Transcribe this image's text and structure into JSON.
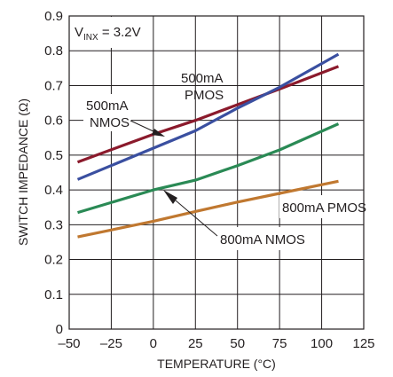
{
  "chart_data": {
    "type": "line",
    "xlabel": "TEMPERATURE (°C)",
    "ylabel": "SWITCH IMPEDANCE (Ω)",
    "xlim": [
      -50,
      125
    ],
    "ylim": [
      0,
      0.9
    ],
    "xticks": [
      -50,
      -25,
      0,
      25,
      50,
      75,
      100,
      125
    ],
    "yticks": [
      0,
      0.1,
      0.2,
      0.3,
      0.4,
      0.5,
      0.6,
      0.7,
      0.8,
      0.9
    ],
    "xtick_labels": [
      "–50",
      "–25",
      "0",
      "25",
      "50",
      "75",
      "100",
      "125"
    ],
    "ytick_labels": [
      "0",
      "0.1",
      "0.2",
      "0.3",
      "0.4",
      "0.5",
      "0.6",
      "0.7",
      "0.8",
      "0.9"
    ],
    "grid": true,
    "condition": {
      "main": "V",
      "sub": "INX",
      "rest": " = 3.2V"
    },
    "series": [
      {
        "name": "500mA PMOS",
        "color": "#8b1a2c",
        "x": [
          -45,
          0,
          25,
          50,
          75,
          110
        ],
        "y": [
          0.48,
          0.56,
          0.6,
          0.645,
          0.69,
          0.755
        ]
      },
      {
        "name": "500mA NMOS",
        "color": "#3a4fa0",
        "x": [
          -45,
          0,
          25,
          50,
          75,
          110
        ],
        "y": [
          0.43,
          0.52,
          0.57,
          0.635,
          0.695,
          0.79
        ]
      },
      {
        "name": "800mA NMOS",
        "color": "#2a8a55",
        "x": [
          -45,
          0,
          25,
          50,
          75,
          110
        ],
        "y": [
          0.335,
          0.4,
          0.428,
          0.47,
          0.515,
          0.59
        ]
      },
      {
        "name": "800mA PMOS",
        "color": "#c07830",
        "x": [
          -45,
          0,
          25,
          50,
          75,
          110
        ],
        "y": [
          0.265,
          0.31,
          0.338,
          0.365,
          0.39,
          0.425
        ]
      }
    ],
    "annotations": [
      {
        "lines": [
          "500mA",
          "PMOS"
        ]
      },
      {
        "lines": [
          "500mA",
          "NMOS"
        ]
      },
      {
        "lines": [
          "800mA PMOS"
        ]
      },
      {
        "lines": [
          "800mA NMOS"
        ]
      }
    ]
  }
}
